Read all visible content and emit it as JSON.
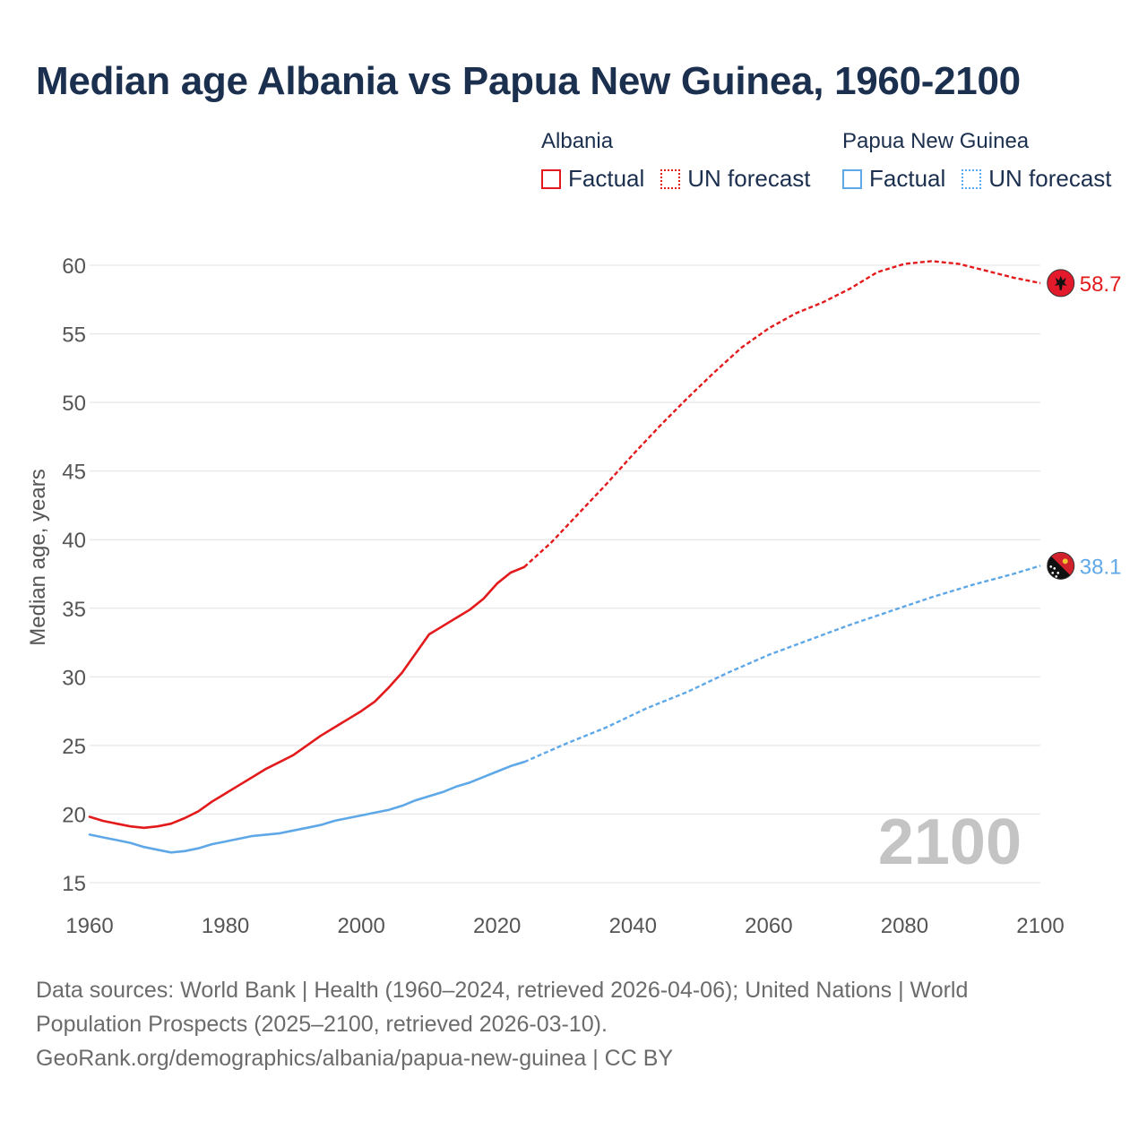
{
  "title": "Median age Albania vs Papua New Guinea, 1960-2100",
  "legend": {
    "groups": [
      {
        "country": "Albania",
        "factual": "Factual",
        "forecast": "UN forecast"
      },
      {
        "country": "Papua New Guinea",
        "factual": "Factual",
        "forecast": "UN forecast"
      }
    ]
  },
  "source": {
    "line1": "Data sources: World Bank | Health (1960–2024, retrieved 2026-04-06); United Nations | World",
    "line2": "Population Prospects (2025–2100, retrieved 2026-03-10).",
    "line3": "GeoRank.org/demographics/albania/papua-new-guinea | CC BY"
  },
  "chart_data": {
    "type": "line",
    "title": "Median age Albania vs Papua New Guinea, 1960-2100",
    "xlabel": "",
    "ylabel": "Median age, years",
    "xlim": [
      1960,
      2100
    ],
    "ylim": [
      15,
      62
    ],
    "xticks": [
      1960,
      1980,
      2000,
      2020,
      2040,
      2060,
      2080,
      2100
    ],
    "yticks": [
      15,
      20,
      25,
      30,
      35,
      40,
      45,
      50,
      55,
      60
    ],
    "year_label": "2100",
    "colors": {
      "albania": "#e31a1c",
      "png": "#5fa8e8",
      "grid": "#e6e6e6",
      "axis_text": "#555555",
      "year_watermark": "#c4c4c4"
    },
    "series": [
      {
        "name": "Albania",
        "key": "albania",
        "end_value": "58.7",
        "factual": {
          "x": [
            1960,
            1962,
            1964,
            1966,
            1968,
            1970,
            1972,
            1974,
            1976,
            1978,
            1980,
            1982,
            1984,
            1986,
            1988,
            1990,
            1992,
            1994,
            1996,
            1998,
            2000,
            2002,
            2004,
            2006,
            2008,
            2010,
            2012,
            2014,
            2016,
            2018,
            2020,
            2022,
            2024
          ],
          "y": [
            19.8,
            19.5,
            19.3,
            19.1,
            19.0,
            19.1,
            19.3,
            19.7,
            20.2,
            20.9,
            21.5,
            22.1,
            22.7,
            23.3,
            23.8,
            24.3,
            25.0,
            25.7,
            26.3,
            26.9,
            27.5,
            28.2,
            29.2,
            30.3,
            31.7,
            33.1,
            33.7,
            34.3,
            34.9,
            35.7,
            36.8,
            37.6,
            38.0
          ]
        },
        "forecast": {
          "x": [
            2024,
            2028,
            2032,
            2036,
            2040,
            2044,
            2048,
            2052,
            2056,
            2060,
            2064,
            2068,
            2072,
            2076,
            2080,
            2084,
            2088,
            2092,
            2096,
            2100
          ],
          "y": [
            38.0,
            39.8,
            41.9,
            44.0,
            46.2,
            48.3,
            50.3,
            52.2,
            54.0,
            55.4,
            56.5,
            57.3,
            58.3,
            59.5,
            60.1,
            60.3,
            60.1,
            59.6,
            59.1,
            58.7
          ]
        }
      },
      {
        "name": "Papua New Guinea",
        "key": "png",
        "end_value": "38.1",
        "factual": {
          "x": [
            1960,
            1962,
            1964,
            1966,
            1968,
            1970,
            1972,
            1974,
            1976,
            1978,
            1980,
            1982,
            1984,
            1986,
            1988,
            1990,
            1992,
            1994,
            1996,
            1998,
            2000,
            2002,
            2004,
            2006,
            2008,
            2010,
            2012,
            2014,
            2016,
            2018,
            2020,
            2022,
            2024
          ],
          "y": [
            18.5,
            18.3,
            18.1,
            17.9,
            17.6,
            17.4,
            17.2,
            17.3,
            17.5,
            17.8,
            18.0,
            18.2,
            18.4,
            18.5,
            18.6,
            18.8,
            19.0,
            19.2,
            19.5,
            19.7,
            19.9,
            20.1,
            20.3,
            20.6,
            21.0,
            21.3,
            21.6,
            22.0,
            22.3,
            22.7,
            23.1,
            23.5,
            23.8
          ]
        },
        "forecast": {
          "x": [
            2024,
            2030,
            2036,
            2042,
            2048,
            2054,
            2060,
            2066,
            2072,
            2078,
            2084,
            2090,
            2096,
            2100
          ],
          "y": [
            23.8,
            25.1,
            26.3,
            27.7,
            28.9,
            30.3,
            31.6,
            32.7,
            33.8,
            34.8,
            35.8,
            36.7,
            37.5,
            38.1
          ]
        }
      }
    ]
  }
}
